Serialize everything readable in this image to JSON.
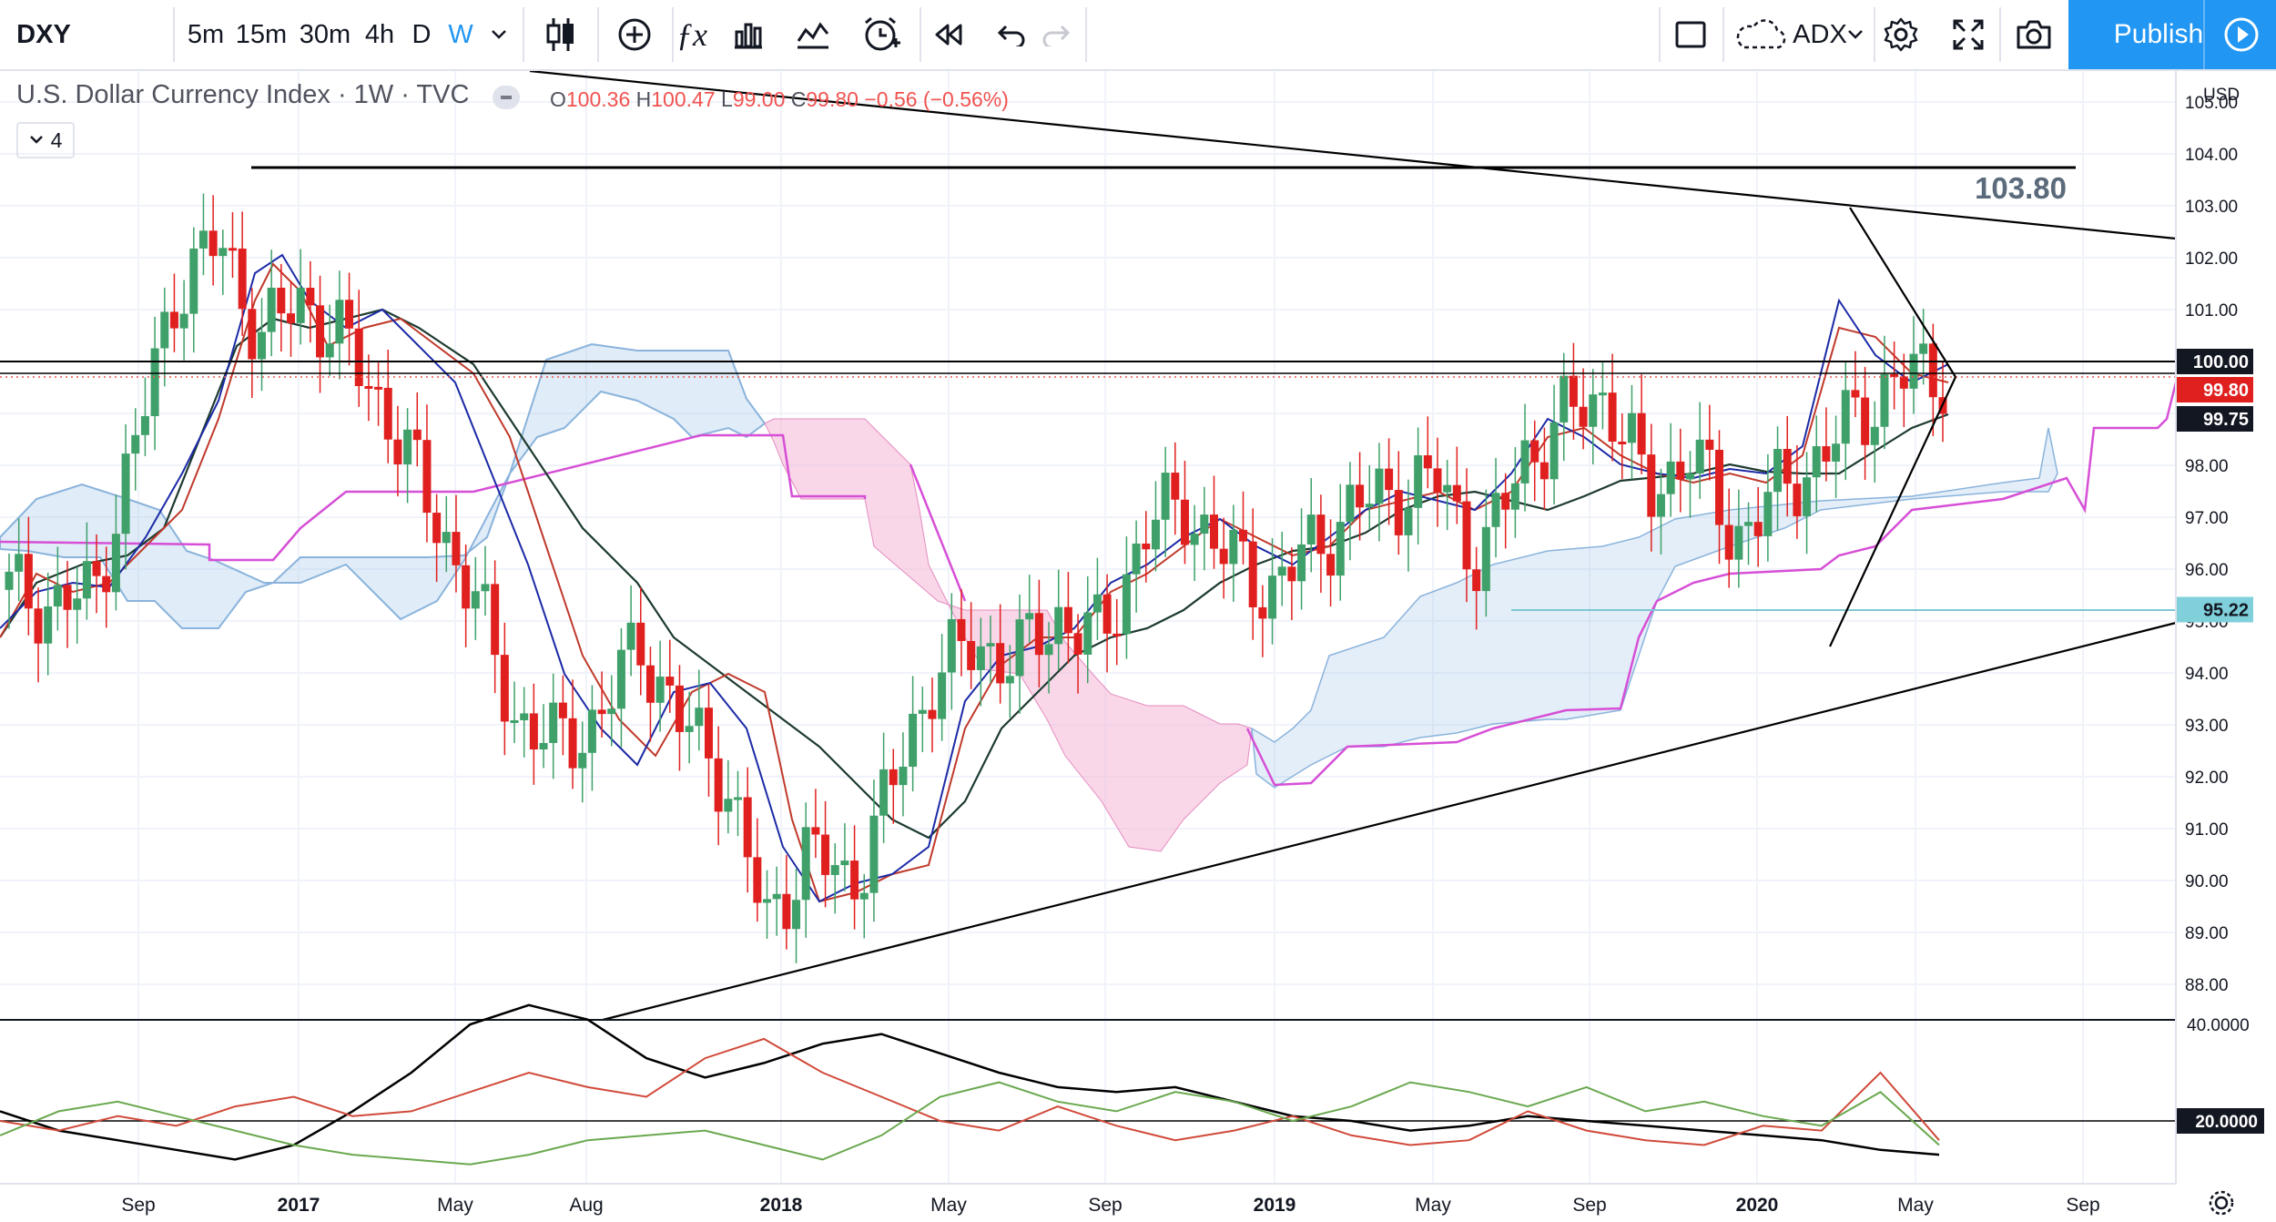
{
  "toolbar": {
    "symbol": "DXY",
    "intervals": [
      "5m",
      "15m",
      "30m",
      "4h",
      "D",
      "W"
    ],
    "active_interval": "W",
    "icons": [
      "chevron-down-icon",
      "candles-icon",
      "add-compare-icon",
      "indicators-icon",
      "templates-icon",
      "line-chart-icon",
      "alert-icon",
      "replay-icon",
      "undo-icon",
      "redo-icon"
    ],
    "indicator_name": "ADX",
    "right_icons": [
      "rectangle-icon",
      "cloud-icon",
      "chevron-down-icon",
      "settings-icon",
      "fullscreen-icon",
      "camera-icon"
    ],
    "publish_label": "Publish",
    "play_icon": "play-icon"
  },
  "legend": {
    "title": "U.S. Dollar Currency Index · 1W · TVC",
    "open_key": "O",
    "open": "100.36",
    "high_key": "H",
    "high": "100.47",
    "low_key": "L",
    "low": "99.00",
    "close_key": "C",
    "close": "99.80",
    "change": "−0.56 (−0.56%)",
    "collapse_count": "4"
  },
  "colors": {
    "up": "#26a69a",
    "down": "#ef5350",
    "candle_up": "#3fa06a",
    "candle_down": "#e0201f",
    "accent": "#2196f3",
    "cloud_blue": "#a6c8e8",
    "cloud_pink": "#f4b7d7",
    "magenta": "#d64fd6",
    "ema_blue": "#1c2aa6",
    "ema_red": "#c0392b",
    "ema_dark": "#1d3b2f",
    "adx_black": "#000000",
    "adx_red": "#d04a3a",
    "adx_green": "#6aa84f"
  },
  "chart_data": [
    {
      "type": "candlestick",
      "title": "U.S. Dollar Currency Index · 1W · TVC",
      "price_axis_label": "USD",
      "ylim": [
        87.3,
        105.5
      ],
      "y_ticks": [
        88.0,
        89.0,
        90.0,
        91.0,
        92.0,
        93.0,
        94.0,
        95.0,
        96.0,
        97.0,
        98.0,
        99.0,
        100.0,
        101.0,
        102.0,
        103.0,
        104.0,
        105.0
      ],
      "x_ticks": [
        "Sep",
        "2017",
        "May",
        "Aug",
        "2018",
        "May",
        "Sep",
        "2019",
        "May",
        "Sep",
        "2020",
        "May",
        "Sep"
      ],
      "annotations": [
        {
          "text": "103.80",
          "value": 103.8,
          "kind": "horizontal-line"
        },
        {
          "text": "100.00",
          "value": 100.0,
          "kind": "horizontal-line"
        },
        {
          "text": "99.75",
          "value": 99.75,
          "kind": "horizontal-line"
        },
        {
          "text": "99.80",
          "value": 99.8,
          "kind": "last-price"
        },
        {
          "text": "95.22",
          "value": 95.22,
          "kind": "price-level"
        }
      ],
      "trend_lines": [
        {
          "name": "upper-trendline",
          "from": [
            "2016-06",
            105.8
          ],
          "to": [
            "2020-09",
            102.45
          ]
        },
        {
          "name": "lower-trendline",
          "from": [
            "2017-08",
            87.5
          ],
          "to": [
            "2020-09",
            95.0
          ]
        },
        {
          "name": "triangle-upper-leg",
          "from": [
            "2020-03",
            103.0
          ],
          "to": [
            "2020-05",
            99.75
          ]
        },
        {
          "name": "triangle-lower-leg",
          "from": [
            "2020-03",
            94.6
          ],
          "to": [
            "2020-05",
            99.75
          ]
        }
      ],
      "price_series": {
        "dates": [
          "2016-07",
          "2016-08",
          "2016-09",
          "2016-10",
          "2016-11",
          "2016-12",
          "2017-01",
          "2017-02",
          "2017-03",
          "2017-04",
          "2017-05",
          "2017-06",
          "2017-07",
          "2017-08",
          "2017-09",
          "2017-10",
          "2017-11",
          "2017-12",
          "2018-01",
          "2018-02",
          "2018-03",
          "2018-04",
          "2018-05",
          "2018-06",
          "2018-07",
          "2018-08",
          "2018-09",
          "2018-10",
          "2018-11",
          "2018-12",
          "2019-01",
          "2019-02",
          "2019-03",
          "2019-04",
          "2019-05",
          "2019-06",
          "2019-07",
          "2019-08",
          "2019-09",
          "2019-10",
          "2019-11",
          "2019-12",
          "2020-01",
          "2020-02",
          "2020-03",
          "2020-04",
          "2020-05"
        ],
        "close": [
          95.6,
          95.3,
          95.5,
          98.4,
          101.5,
          102.3,
          100.5,
          101.2,
          100.3,
          99.0,
          97.2,
          95.6,
          93.2,
          92.6,
          93.1,
          94.6,
          93.0,
          92.1,
          89.1,
          90.6,
          89.9,
          91.8,
          94.0,
          94.5,
          94.3,
          95.1,
          94.6,
          96.8,
          97.2,
          96.2,
          95.6,
          96.4,
          97.2,
          97.5,
          97.7,
          96.1,
          98.1,
          98.9,
          99.4,
          97.4,
          98.3,
          96.6,
          97.4,
          98.1,
          99.0,
          99.7,
          99.8
        ]
      }
    },
    {
      "type": "line",
      "title": "ADX",
      "y_ticks": [
        20.0,
        40.0
      ],
      "annotations": [
        {
          "text": "20.0000",
          "value": 20.0
        }
      ],
      "series": [
        {
          "values": [
            22,
            18,
            16,
            14,
            12,
            15,
            22,
            30,
            40,
            44,
            41,
            33,
            29,
            32,
            36,
            38,
            34,
            30,
            27,
            26,
            27,
            24,
            21,
            20,
            18,
            19,
            21,
            20,
            19,
            18,
            17,
            16,
            14,
            13
          ]
        },
        {
          "values": [
            20,
            18,
            21,
            19,
            23,
            25,
            21,
            22,
            26,
            30,
            27,
            25,
            33,
            37,
            30,
            25,
            20,
            18,
            23,
            19,
            16,
            18,
            21,
            17,
            15,
            16,
            22,
            18,
            16,
            15,
            19,
            18,
            30,
            16
          ]
        },
        {
          "values": [
            17,
            22,
            24,
            21,
            18,
            15,
            13,
            12,
            11,
            13,
            16,
            17,
            18,
            15,
            12,
            17,
            25,
            28,
            24,
            22,
            26,
            24,
            20,
            23,
            28,
            26,
            23,
            27,
            22,
            24,
            21,
            19,
            26,
            15
          ]
        }
      ]
    }
  ]
}
